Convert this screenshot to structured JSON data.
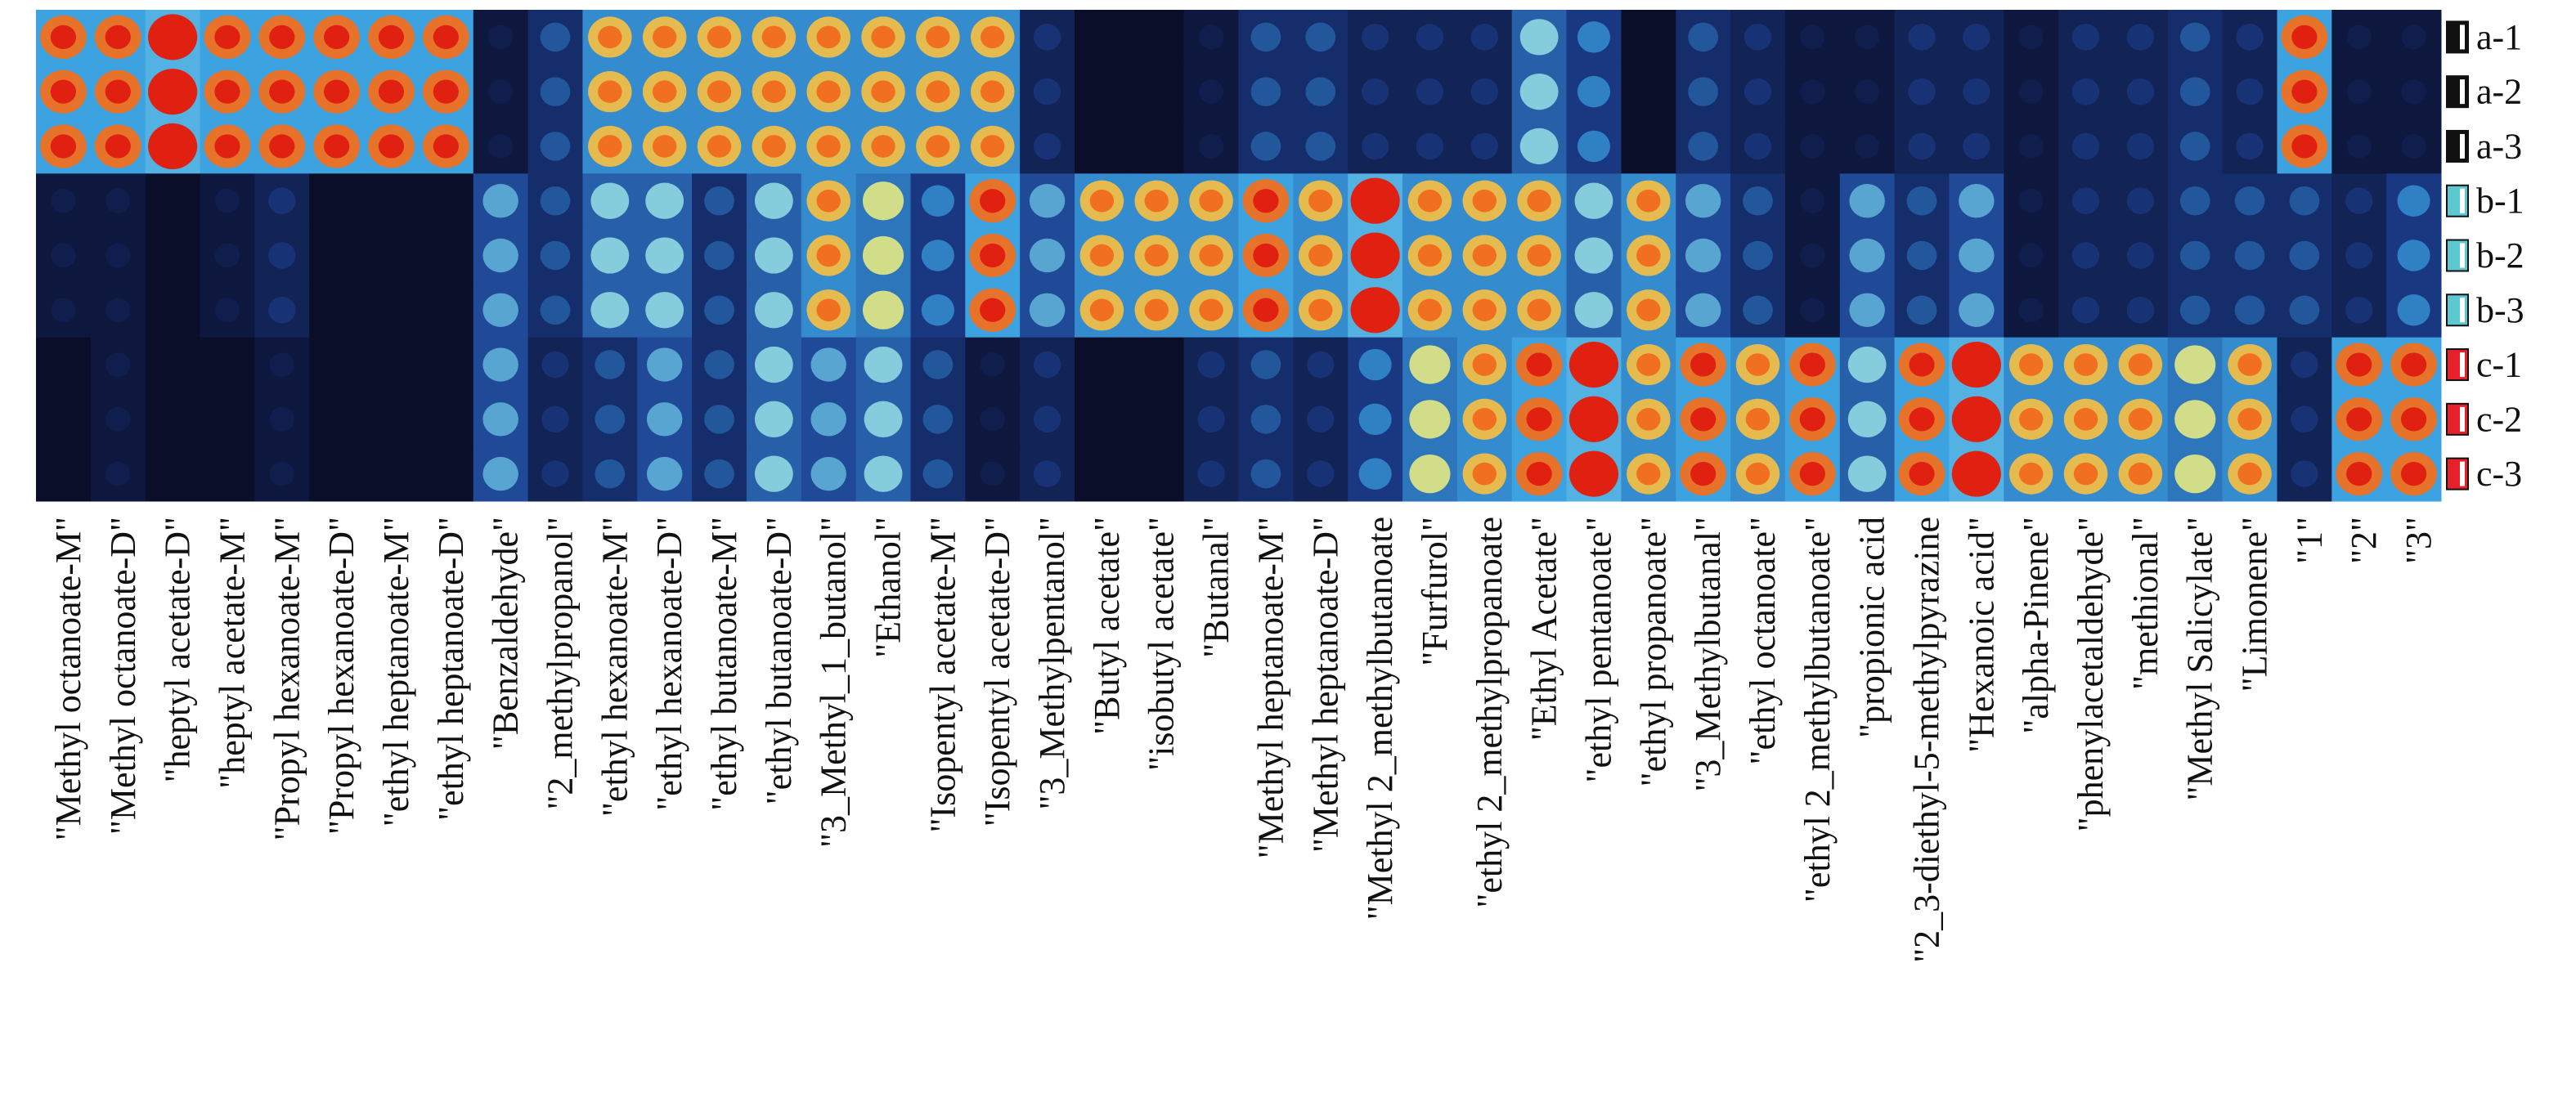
{
  "chart_data": {
    "type": "heatmap",
    "categories": [
      "\"Methyl octanoate-M\"",
      "\"Methyl octanoate-D\"",
      "\"heptyl acetate-D\"",
      "\"heptyl acetate-M\"",
      "\"Propyl hexanoate-M\"",
      "\"Propyl hexanoate-D\"",
      "\"ethyl heptanoate-M\"",
      "\"ethyl heptanoate-D\"",
      "\"Benzaldehyde\"",
      "\"2_methylpropanol\"",
      "\"ethyl hexanoate-M\"",
      "\"ethyl hexanoate-D\"",
      "\"ethyl butanoate-M\"",
      "\"ethyl butanoate-D\"",
      "\"3_Methyl_1_butanol\"",
      "\"Ethanol\"",
      "\"Isopentyl acetate-M\"",
      "\"Isopentyl acetate-D\"",
      "\"3_Methylpentanol\"",
      "\"Butyl acetate\"",
      "\"isobutyl acetate\"",
      "\"Butanal\"",
      "\"Methyl heptanoate-M\"",
      "\"Methyl heptanoate-D\"",
      "\"Methyl 2_methylbutanoate",
      "\"Furfurol\"",
      "\"ethyl 2_methylpropanoate",
      "\"Ethyl Acetate\"",
      "\"ethyl pentanoate\"",
      "\"ethyl propanoate\"",
      "\"3_Methylbutanal\"",
      "\"ethyl octanoate\"",
      "\"ethyl 2_methylbutanoate\"",
      "\"propionic acid",
      "\"2_3-diethyl-5-methylpyrazine",
      "\"Hexanoic acid\"",
      "\"alpha-Pinene\"",
      "\"phenylacetaldehyde\"",
      "\"methional\"",
      "\"Methyl Salicylate\"",
      "\"Limonene\"",
      "\"1\"",
      "\"2\"",
      "\"3\""
    ],
    "series": [
      {
        "name": "a-1",
        "color": "#111111",
        "values": [
          9,
          9,
          10,
          9,
          9,
          9,
          9,
          9,
          1,
          3,
          8,
          8,
          8,
          8,
          8,
          8,
          8,
          8,
          2,
          0,
          0,
          1,
          3,
          3,
          2,
          2,
          2,
          6,
          4,
          0,
          3,
          2,
          1,
          1,
          2,
          2,
          1,
          2,
          2,
          3,
          2,
          9,
          1,
          1
        ]
      },
      {
        "name": "a-2",
        "color": "#111111",
        "values": [
          9,
          9,
          10,
          9,
          9,
          9,
          9,
          9,
          1,
          3,
          8,
          8,
          8,
          8,
          8,
          8,
          8,
          8,
          2,
          0,
          0,
          1,
          3,
          3,
          2,
          2,
          2,
          6,
          4,
          0,
          3,
          2,
          1,
          1,
          2,
          2,
          1,
          2,
          2,
          3,
          2,
          9,
          1,
          1
        ]
      },
      {
        "name": "a-3",
        "color": "#111111",
        "values": [
          9,
          9,
          10,
          9,
          9,
          9,
          9,
          9,
          1,
          3,
          8,
          8,
          8,
          8,
          8,
          8,
          8,
          8,
          2,
          0,
          0,
          1,
          3,
          3,
          2,
          2,
          2,
          6,
          4,
          0,
          3,
          2,
          1,
          1,
          2,
          2,
          1,
          2,
          2,
          3,
          2,
          9,
          1,
          1
        ]
      },
      {
        "name": "b-1",
        "color": "#5cc8d0",
        "values": [
          1,
          1,
          0,
          1,
          2,
          0,
          0,
          0,
          5,
          3,
          6,
          6,
          3,
          6,
          8,
          7,
          4,
          9,
          5,
          8,
          8,
          8,
          9,
          8,
          10,
          8,
          8,
          8,
          6,
          8,
          5,
          3,
          1,
          5,
          3,
          5,
          1,
          2,
          2,
          3,
          3,
          3,
          2,
          4
        ]
      },
      {
        "name": "b-2",
        "color": "#5cc8d0",
        "values": [
          1,
          1,
          0,
          1,
          2,
          0,
          0,
          0,
          5,
          3,
          6,
          6,
          3,
          6,
          8,
          7,
          4,
          9,
          5,
          8,
          8,
          8,
          9,
          8,
          10,
          8,
          8,
          8,
          6,
          8,
          5,
          3,
          1,
          5,
          3,
          5,
          1,
          2,
          2,
          3,
          3,
          3,
          2,
          4
        ]
      },
      {
        "name": "b-3",
        "color": "#5cc8d0",
        "values": [
          1,
          1,
          0,
          1,
          2,
          0,
          0,
          0,
          5,
          3,
          6,
          6,
          3,
          6,
          8,
          7,
          4,
          9,
          5,
          8,
          8,
          8,
          9,
          8,
          10,
          8,
          8,
          8,
          6,
          8,
          5,
          3,
          1,
          5,
          3,
          5,
          1,
          2,
          2,
          3,
          3,
          3,
          2,
          4
        ]
      },
      {
        "name": "c-1",
        "color": "#e8202a",
        "values": [
          0,
          1,
          0,
          0,
          1,
          0,
          0,
          0,
          5,
          2,
          3,
          5,
          3,
          6,
          5,
          6,
          3,
          1,
          2,
          0,
          0,
          2,
          3,
          2,
          4,
          7,
          8,
          9,
          10,
          8,
          9,
          8,
          9,
          6,
          9,
          10,
          8,
          8,
          8,
          7,
          8,
          2,
          9,
          9
        ]
      },
      {
        "name": "c-2",
        "color": "#e8202a",
        "values": [
          0,
          1,
          0,
          0,
          1,
          0,
          0,
          0,
          5,
          2,
          3,
          5,
          3,
          6,
          5,
          6,
          3,
          1,
          2,
          0,
          0,
          2,
          3,
          2,
          4,
          7,
          8,
          9,
          10,
          8,
          9,
          8,
          9,
          6,
          9,
          10,
          8,
          8,
          8,
          7,
          8,
          2,
          9,
          9
        ]
      },
      {
        "name": "c-3",
        "color": "#e8202a",
        "values": [
          0,
          1,
          0,
          0,
          1,
          0,
          0,
          0,
          5,
          2,
          3,
          5,
          3,
          6,
          5,
          6,
          3,
          1,
          2,
          0,
          0,
          2,
          3,
          2,
          4,
          7,
          8,
          9,
          10,
          8,
          9,
          8,
          9,
          6,
          9,
          10,
          8,
          8,
          8,
          7,
          8,
          2,
          9,
          9
        ]
      }
    ],
    "zlim": [
      0,
      10
    ]
  }
}
